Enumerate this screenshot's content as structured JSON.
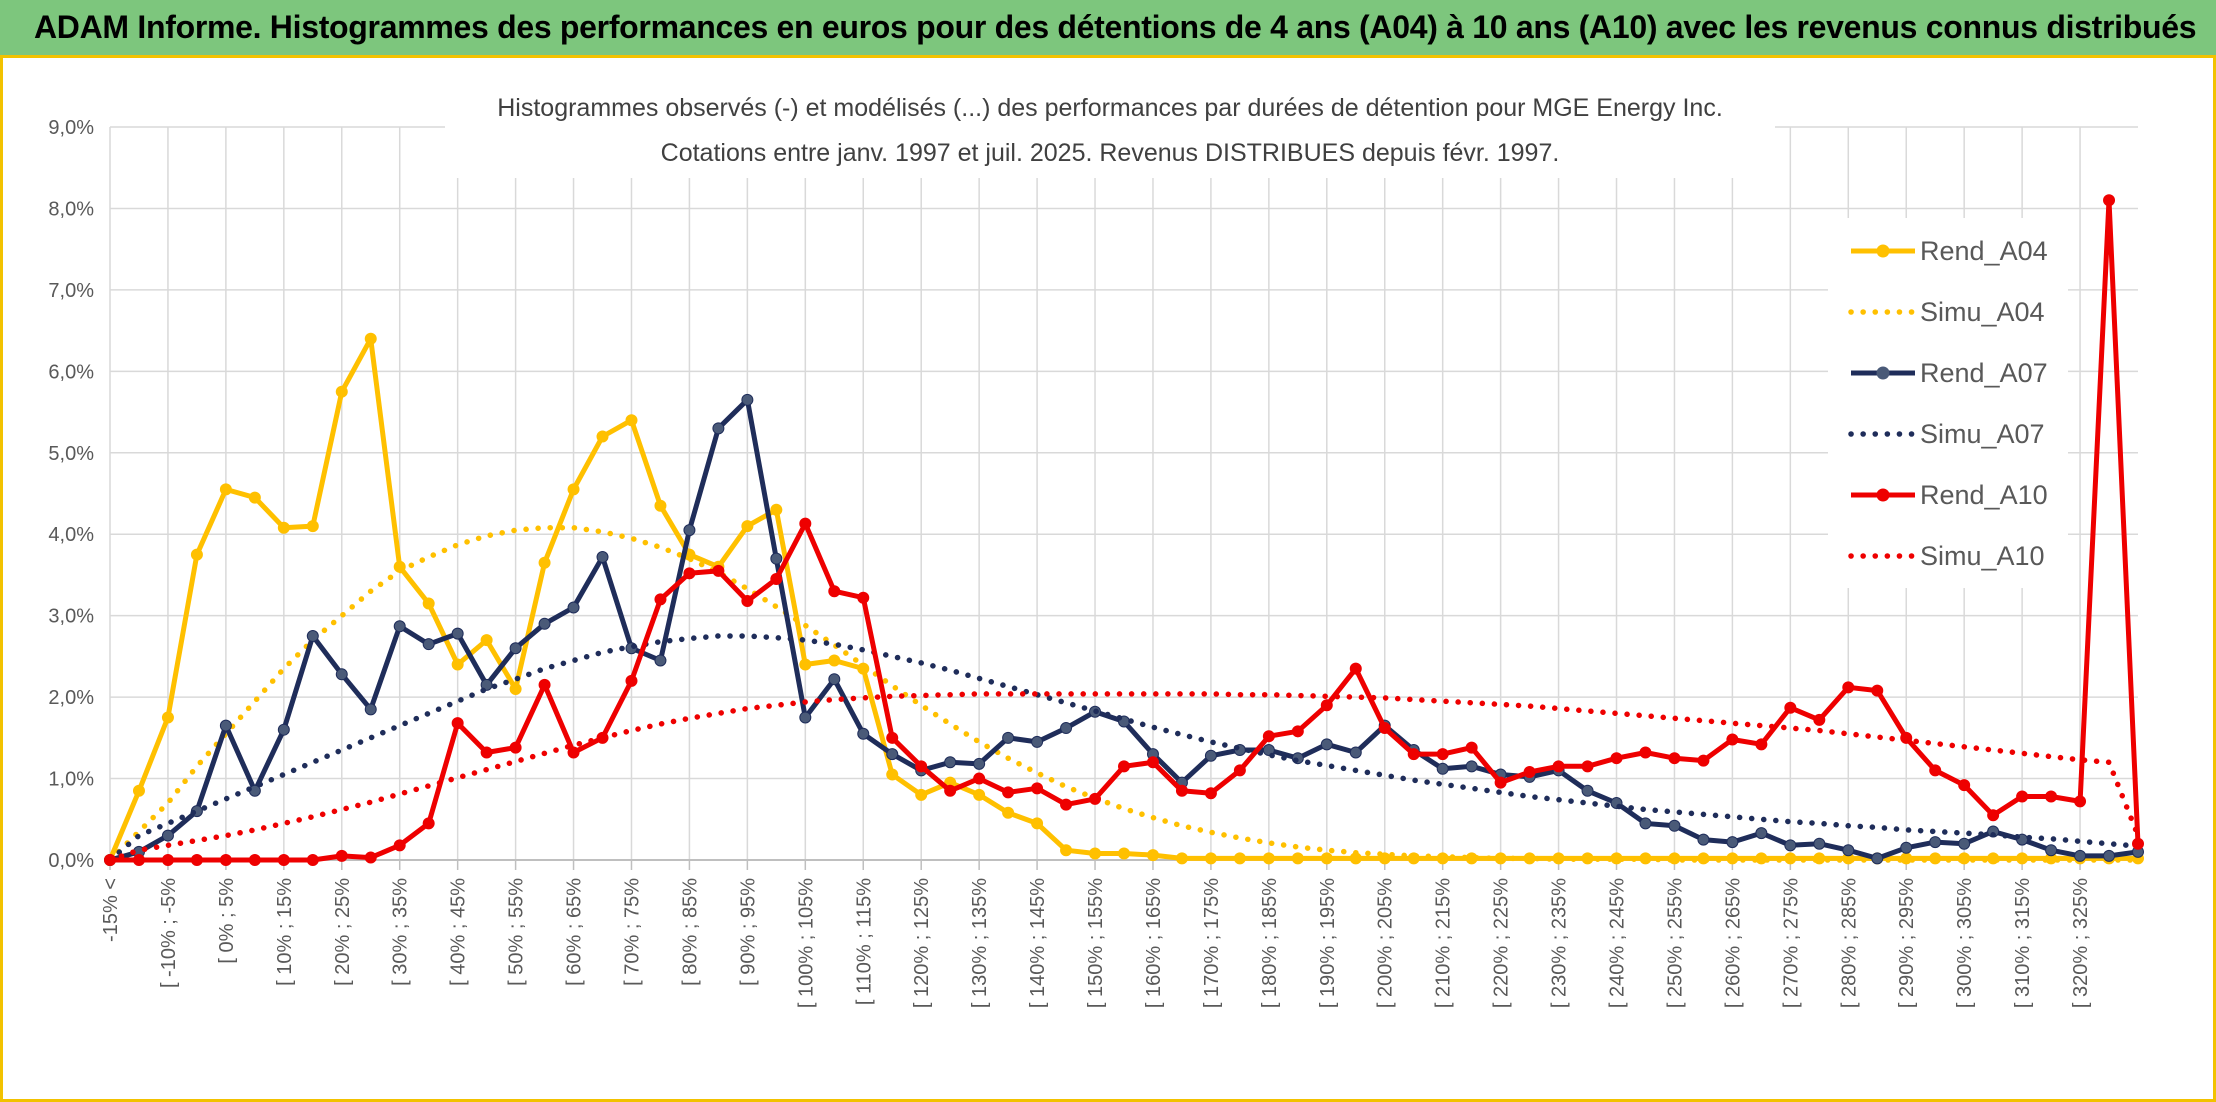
{
  "header": {
    "banner": "ADAM Informe. Histogrammes des performances en euros pour des détentions de 4 ans (A04) à 10 ans (A10) avec les revenus connus distribués"
  },
  "chart_data": {
    "type": "line",
    "title": "Histogrammes observés (-) et modélisés (...) des performances par durées de détention pour MGE Energy Inc.",
    "subtitle": "Cotations entre janv. 1997 et juil. 2025. Revenus DISTRIBUES depuis févr. 1997.",
    "xlabel": "",
    "ylabel": "",
    "ylim": [
      0,
      9
    ],
    "yticks": [
      "0,0%",
      "1,0%",
      "2,0%",
      "3,0%",
      "4,0%",
      "5,0%",
      "6,0%",
      "7,0%",
      "8,0%",
      "9,0%"
    ],
    "grid": true,
    "legend_position": "right",
    "x_tick_labels": [
      "-15% <",
      "[ -10% ; -5%",
      "[ 0% ; 5%",
      "[ 10% ; 15%",
      "[ 20% ; 25%",
      "[ 30% ; 35%",
      "[ 40% ; 45%",
      "[ 50% ; 55%",
      "[ 60% ; 65%",
      "[ 70% ; 75%",
      "[ 80% ; 85%",
      "[ 90% ; 95%",
      "[ 100% ; 105%",
      "[ 110% ; 115%",
      "[ 120% ; 125%",
      "[ 130% ; 135%",
      "[ 140% ; 145%",
      "[ 150% ; 155%",
      "[ 160% ; 165%",
      "[ 170% ; 175%",
      "[ 180% ; 185%",
      "[ 190% ; 195%",
      "[ 200% ; 205%",
      "[ 210% ; 215%",
      "[ 220% ; 225%",
      "[ 230% ; 235%",
      "[ 240% ; 245%",
      "[ 250% ; 255%",
      "[ 260% ; 265%",
      "[ 270% ; 275%",
      "[ 280% ; 285%",
      "[ 290% ; 295%",
      "[ 300% ; 305%",
      "[ 310% ; 315%",
      "[ 320% ; 325%"
    ],
    "series": [
      {
        "name": "Rend_A04",
        "style": "solid",
        "color": "#ffc000",
        "values": [
          0.0,
          0.85,
          1.75,
          3.75,
          4.55,
          4.45,
          4.08,
          4.1,
          5.75,
          6.4,
          3.6,
          3.15,
          2.4,
          2.7,
          2.1,
          3.65,
          4.55,
          5.2,
          5.4,
          4.35,
          3.75,
          3.6,
          4.1,
          4.3,
          2.4,
          2.45,
          2.35,
          1.05,
          0.8,
          0.95,
          0.8,
          0.58,
          0.45,
          0.12,
          0.08,
          0.08,
          0.06,
          0.02,
          0.02,
          0.02,
          0.02,
          0.02,
          0.02,
          0.02,
          0.02,
          0.02,
          0.02,
          0.02,
          0.02,
          0.02,
          0.02,
          0.02,
          0.02,
          0.02,
          0.02,
          0.02,
          0.02,
          0.02,
          0.02,
          0.02,
          0.02,
          0.02,
          0.02,
          0.02,
          0.02,
          0.02,
          0.02,
          0.02,
          0.02,
          0.02,
          0.02
        ]
      },
      {
        "name": "Simu_A04",
        "style": "dotted",
        "color": "#ffc000",
        "values": [
          0.0,
          0.35,
          0.7,
          1.15,
          1.55,
          1.95,
          2.35,
          2.7,
          3.0,
          3.3,
          3.55,
          3.72,
          3.87,
          3.98,
          4.05,
          4.08,
          4.08,
          4.03,
          3.95,
          3.84,
          3.7,
          3.53,
          3.33,
          3.11,
          2.88,
          2.64,
          2.39,
          2.14,
          1.9,
          1.67,
          1.45,
          1.25,
          1.07,
          0.9,
          0.76,
          0.63,
          0.52,
          0.42,
          0.34,
          0.27,
          0.21,
          0.16,
          0.12,
          0.09,
          0.07,
          0.05,
          0.04,
          0.03,
          0.02,
          0.02,
          0.01,
          0.01,
          0.01,
          0.01,
          0.0,
          0.0,
          0.0,
          0.0,
          0.0,
          0.0,
          0.0,
          0.0,
          0.0,
          0.0,
          0.0,
          0.0,
          0.0,
          0.0,
          0.0,
          0.0,
          0.0
        ]
      },
      {
        "name": "Rend_A07",
        "style": "solid",
        "color": "#1f2d5a",
        "values": [
          0.0,
          0.1,
          0.3,
          0.6,
          1.65,
          0.85,
          1.6,
          2.75,
          2.28,
          1.85,
          2.87,
          2.65,
          2.78,
          2.15,
          2.6,
          2.9,
          3.1,
          3.72,
          2.6,
          2.45,
          4.05,
          5.3,
          5.65,
          3.7,
          1.75,
          2.22,
          1.55,
          1.3,
          1.1,
          1.2,
          1.18,
          1.5,
          1.45,
          1.62,
          1.82,
          1.7,
          1.3,
          0.95,
          1.28,
          1.35,
          1.35,
          1.25,
          1.42,
          1.32,
          1.65,
          1.35,
          1.12,
          1.15,
          1.05,
          1.02,
          1.1,
          0.85,
          0.7,
          0.45,
          0.42,
          0.25,
          0.22,
          0.33,
          0.18,
          0.2,
          0.12,
          0.02,
          0.15,
          0.22,
          0.2,
          0.35,
          0.25,
          0.12,
          0.05,
          0.05,
          0.1
        ]
      },
      {
        "name": "Simu_A07",
        "style": "dotted",
        "color": "#1f2d5a",
        "values": [
          0.0,
          0.3,
          0.45,
          0.6,
          0.75,
          0.9,
          1.05,
          1.2,
          1.35,
          1.5,
          1.65,
          1.8,
          1.95,
          2.1,
          2.22,
          2.35,
          2.45,
          2.55,
          2.62,
          2.68,
          2.72,
          2.75,
          2.75,
          2.73,
          2.7,
          2.65,
          2.58,
          2.5,
          2.42,
          2.33,
          2.23,
          2.13,
          2.03,
          1.93,
          1.83,
          1.73,
          1.63,
          1.54,
          1.45,
          1.37,
          1.29,
          1.22,
          1.16,
          1.1,
          1.04,
          0.98,
          0.93,
          0.88,
          0.83,
          0.78,
          0.74,
          0.7,
          0.66,
          0.62,
          0.59,
          0.56,
          0.53,
          0.5,
          0.47,
          0.45,
          0.42,
          0.4,
          0.37,
          0.35,
          0.33,
          0.31,
          0.28,
          0.26,
          0.23,
          0.2,
          0.17
        ]
      },
      {
        "name": "Rend_A10",
        "style": "solid",
        "color": "#ee0000",
        "values": [
          0.0,
          0.0,
          0.0,
          0.0,
          0.0,
          0.0,
          0.0,
          0.0,
          0.05,
          0.03,
          0.18,
          0.45,
          1.68,
          1.32,
          1.38,
          2.15,
          1.32,
          1.5,
          2.2,
          3.2,
          3.52,
          3.55,
          3.18,
          3.45,
          4.13,
          3.3,
          3.22,
          1.5,
          1.15,
          0.85,
          1.0,
          0.83,
          0.88,
          0.68,
          0.75,
          1.15,
          1.2,
          0.85,
          0.82,
          1.1,
          1.52,
          1.58,
          1.9,
          2.35,
          1.62,
          1.3,
          1.3,
          1.38,
          0.95,
          1.08,
          1.15,
          1.15,
          1.25,
          1.32,
          1.25,
          1.22,
          1.48,
          1.42,
          1.87,
          1.72,
          2.12,
          2.08,
          1.5,
          1.1,
          0.92,
          0.55,
          0.78,
          0.78,
          0.72,
          8.1,
          0.2
        ]
      },
      {
        "name": "Simu_A10",
        "style": "dotted",
        "color": "#ee0000",
        "values": [
          0.0,
          0.12,
          0.18,
          0.24,
          0.3,
          0.37,
          0.45,
          0.53,
          0.62,
          0.71,
          0.81,
          0.91,
          1.01,
          1.11,
          1.21,
          1.31,
          1.41,
          1.5,
          1.59,
          1.67,
          1.74,
          1.8,
          1.86,
          1.9,
          1.94,
          1.97,
          1.99,
          2.01,
          2.02,
          2.03,
          2.04,
          2.04,
          2.04,
          2.04,
          2.04,
          2.04,
          2.04,
          2.04,
          2.04,
          2.03,
          2.03,
          2.02,
          2.01,
          2.0,
          1.99,
          1.97,
          1.95,
          1.93,
          1.91,
          1.89,
          1.86,
          1.83,
          1.8,
          1.77,
          1.74,
          1.71,
          1.68,
          1.65,
          1.62,
          1.59,
          1.55,
          1.51,
          1.47,
          1.43,
          1.39,
          1.35,
          1.31,
          1.27,
          1.23,
          1.2,
          0.3
        ]
      }
    ]
  }
}
